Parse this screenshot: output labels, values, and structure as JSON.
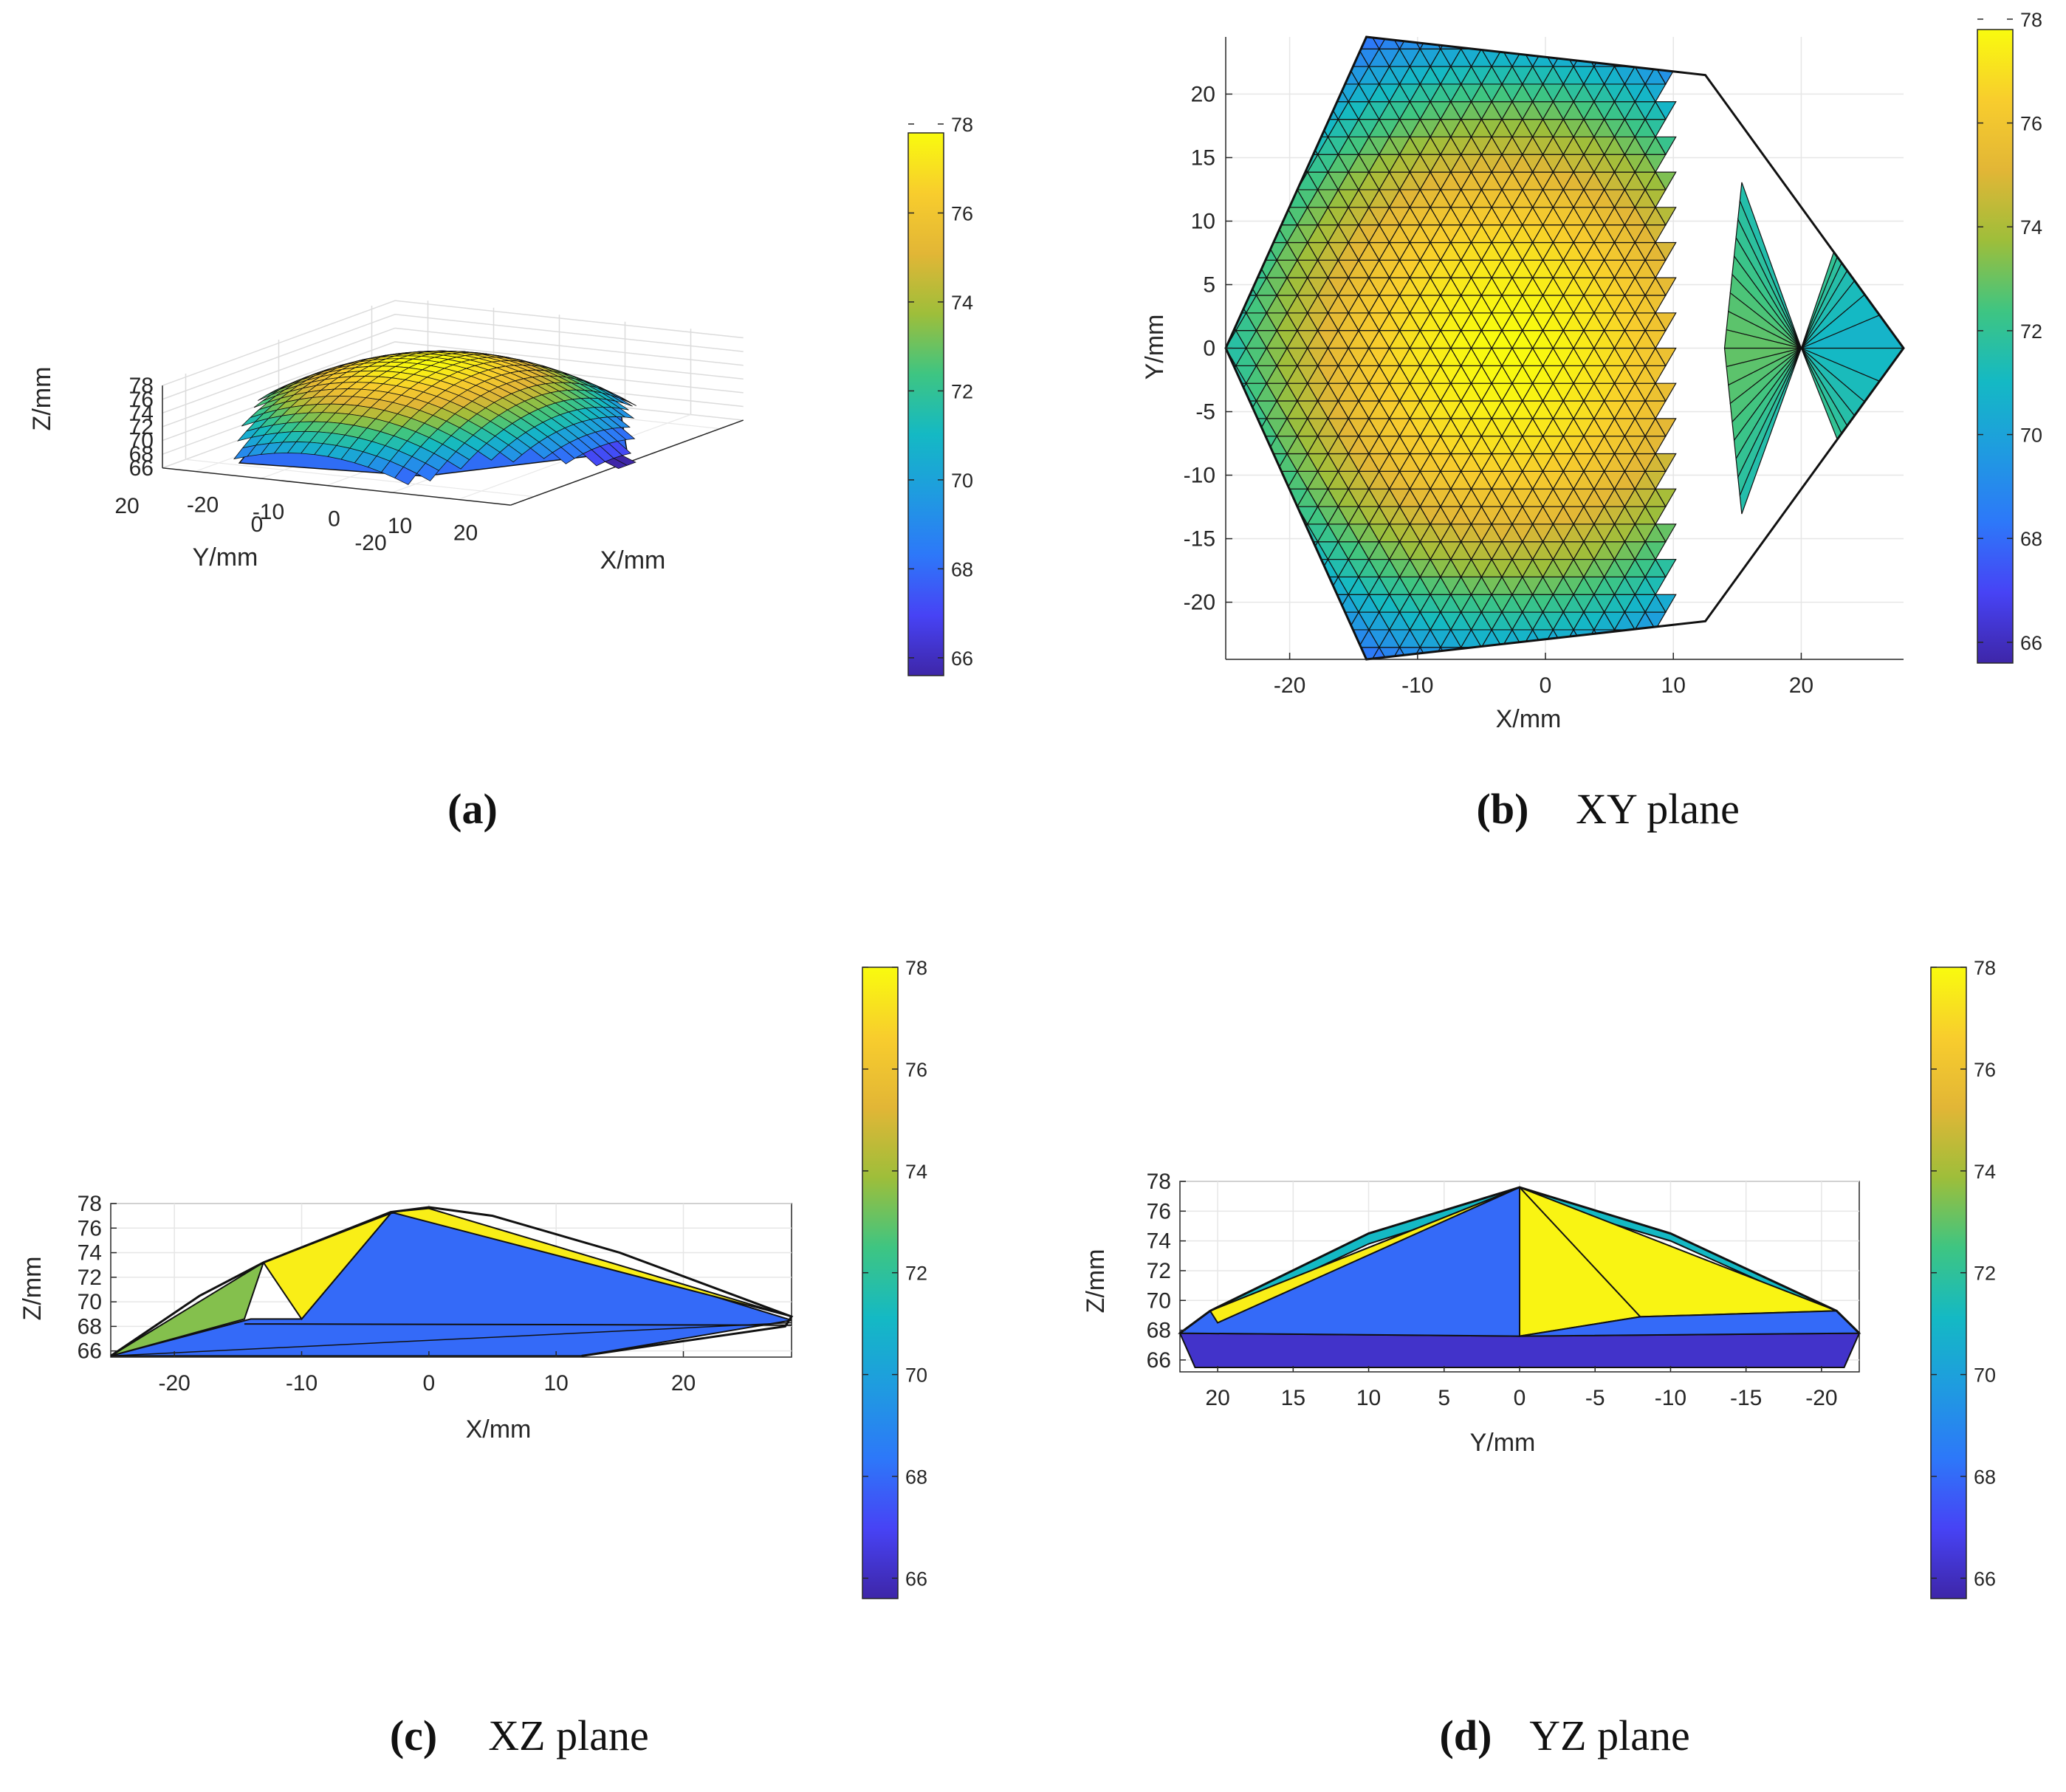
{
  "colormap": {
    "name": "parula",
    "stops": [
      "#3e26a8",
      "#4743f5",
      "#2d78f9",
      "#1f9be0",
      "#14b9c4",
      "#3ec582",
      "#9ebe3a",
      "#e2b636",
      "#f8cd2d",
      "#f9fb0e"
    ]
  },
  "chart_data": [
    {
      "id": "a",
      "type": "surface",
      "view": "3d",
      "caption_letter": "(a)",
      "caption_text": "",
      "xlabel": "X/mm",
      "ylabel": "Y/mm",
      "zlabel": "Z/mm",
      "xticks": [
        "-20",
        "-10",
        "0",
        "10",
        "20"
      ],
      "yticks": [
        "20",
        "0",
        "-20"
      ],
      "zticks": [
        "78",
        "76",
        "74",
        "72",
        "70",
        "68",
        "66"
      ],
      "colorbar": {
        "min": 65.6,
        "max": 77.8,
        "ticks": [
          "78",
          "76",
          "74",
          "72",
          "70",
          "68",
          "66"
        ]
      },
      "surface": {
        "z_min": 65.6,
        "z_peak": 77.8,
        "peak_xy": [
          -3,
          0
        ]
      }
    },
    {
      "id": "b",
      "type": "trisurf-top",
      "view": "xy",
      "caption_letter": "(b)",
      "caption_text": "XY plane",
      "xlabel": "X/mm",
      "ylabel": "Y/mm",
      "xticks": [
        "-20",
        "-10",
        "0",
        "10",
        "20"
      ],
      "yticks": [
        "20",
        "15",
        "10",
        "5",
        "0",
        "-5",
        "-10",
        "-15",
        "-20"
      ],
      "xlim": [
        -25,
        28
      ],
      "ylim": [
        -24.5,
        24.5
      ],
      "colorbar": {
        "min": 65.6,
        "max": 77.8,
        "ticks": [
          "78",
          "76",
          "74",
          "72",
          "70",
          "68",
          "66"
        ]
      },
      "hexagon": [
        [
          -25,
          0
        ],
        [
          -14,
          24.5
        ],
        [
          12.5,
          21.5
        ],
        [
          28,
          0
        ],
        [
          12.5,
          -21.5
        ],
        [
          -14,
          -24.5
        ]
      ],
      "surface": {
        "z_min": 65.6,
        "z_peak": 77.8,
        "peak_xy": [
          -3,
          0
        ]
      },
      "fan_center": [
        20,
        0
      ]
    },
    {
      "id": "c",
      "type": "trisurf-side",
      "view": "xz",
      "caption_letter": "(c)",
      "caption_text": "XZ plane",
      "xlabel": "X/mm",
      "ylabel": "Z/mm",
      "xticks": [
        "-20",
        "-10",
        "0",
        "10",
        "20"
      ],
      "yticks": [
        "78",
        "76",
        "74",
        "72",
        "70",
        "68",
        "66"
      ],
      "xlim": [
        -25,
        28.5
      ],
      "ylim": [
        65.5,
        78
      ],
      "colorbar": {
        "min": 65.6,
        "max": 78,
        "ticks": [
          "78",
          "76",
          "74",
          "72",
          "70",
          "68",
          "66"
        ]
      },
      "facets": [
        {
          "z": 68.0,
          "pts": [
            [
              -25,
              65.6
            ],
            [
              -14,
              68.6
            ],
            [
              -10,
              68.6
            ],
            [
              -3,
              77.2
            ],
            [
              0,
              77.6
            ],
            [
              28.5,
              68.5
            ],
            [
              12,
              65.6
            ]
          ]
        },
        {
          "z": 77.6,
          "pts": [
            [
              0,
              77.6
            ],
            [
              -3,
              77.3
            ],
            [
              28.5,
              68.8
            ]
          ]
        },
        {
          "z": 77.6,
          "pts": [
            [
              -13,
              73.2
            ],
            [
              -3,
              77.2
            ],
            [
              -10,
              68.6
            ]
          ]
        },
        {
          "z": 73.5,
          "pts": [
            [
              -25,
              65.6
            ],
            [
              -13,
              73.2
            ],
            [
              -14.5,
              68.6
            ]
          ]
        }
      ],
      "outline": [
        [
          -25,
          65.6
        ],
        [
          -18,
          70.5
        ],
        [
          -13,
          73.2
        ],
        [
          -3,
          77.3
        ],
        [
          0,
          77.7
        ],
        [
          5,
          77
        ],
        [
          15,
          74
        ],
        [
          28.5,
          68.8
        ],
        [
          28,
          68
        ],
        [
          12,
          65.6
        ]
      ]
    },
    {
      "id": "d",
      "type": "trisurf-side",
      "view": "yz",
      "caption_letter": "(d)",
      "caption_text": "YZ plane",
      "xlabel": "Y/mm",
      "ylabel": "Z/mm",
      "xticks": [
        "20",
        "15",
        "10",
        "5",
        "0",
        "-5",
        "-10",
        "-15",
        "-20"
      ],
      "yticks": [
        "78",
        "76",
        "74",
        "72",
        "70",
        "68",
        "66"
      ],
      "xlim": [
        22.5,
        -22.5
      ],
      "ylim": [
        65.2,
        78
      ],
      "colorbar": {
        "min": 65.6,
        "max": 78,
        "ticks": [
          "78",
          "76",
          "74",
          "72",
          "70",
          "68",
          "66"
        ]
      },
      "facets": [
        {
          "z": 66.2,
          "pts": [
            [
              22.5,
              67.8
            ],
            [
              0,
              67.6
            ],
            [
              -22.5,
              67.8
            ],
            [
              -21.5,
              65.5
            ],
            [
              21.5,
              65.5
            ]
          ]
        },
        {
          "z": 68.0,
          "pts": [
            [
              22.5,
              67.8
            ],
            [
              20.5,
              69.3
            ],
            [
              0,
              77.6
            ],
            [
              0,
              67.6
            ]
          ]
        },
        {
          "z": 77.8,
          "pts": [
            [
              0,
              77.6
            ],
            [
              0,
              67.6
            ],
            [
              -8,
              68.9
            ],
            [
              -21,
              69.3
            ]
          ]
        },
        {
          "z": 68.0,
          "pts": [
            [
              0,
              67.6
            ],
            [
              -8,
              68.9
            ],
            [
              -21,
              69.3
            ],
            [
              -22.5,
              67.8
            ]
          ]
        },
        {
          "z": 77.6,
          "pts": [
            [
              20.5,
              69.3
            ],
            [
              20,
              68.5
            ],
            [
              0,
              77.6
            ]
          ]
        }
      ],
      "outline": [
        [
          22.5,
          67.8
        ],
        [
          20.5,
          69.3
        ],
        [
          10,
          74.5
        ],
        [
          0,
          77.6
        ],
        [
          -10,
          74.5
        ],
        [
          -21,
          69.3
        ],
        [
          -22.5,
          67.8
        ]
      ]
    }
  ]
}
